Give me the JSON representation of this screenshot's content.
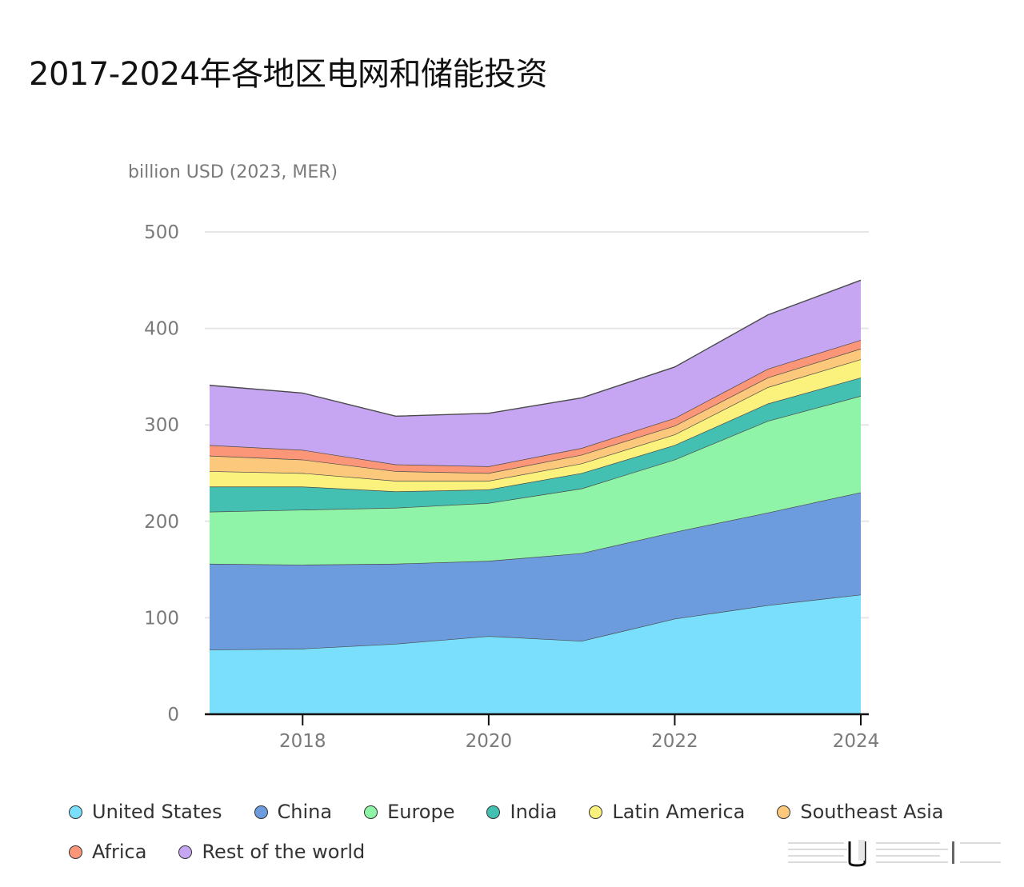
{
  "page": {
    "title": "2017-2024年各地区电网和储能投资"
  },
  "chart_data": {
    "type": "area",
    "stacked": true,
    "title": "2017-2024年各地区电网和储能投资",
    "ylabel": "billion USD (2023, MER)",
    "xlabel": "",
    "x": [
      2017,
      2018,
      2019,
      2020,
      2021,
      2022,
      2023,
      2024
    ],
    "xticks": [
      2018,
      2020,
      2022,
      2024
    ],
    "yticks": [
      0,
      100,
      200,
      300,
      400,
      500
    ],
    "ylim": [
      0,
      500
    ],
    "xlim": [
      2017,
      2024
    ],
    "grid": true,
    "legend_position": "bottom",
    "series": [
      {
        "name": "United States",
        "color": "#7ADFFC",
        "values": [
          67,
          68,
          73,
          81,
          76,
          99,
          113,
          124
        ]
      },
      {
        "name": "China",
        "color": "#6D9CDE",
        "values": [
          89,
          87,
          83,
          78,
          91,
          90,
          96,
          106
        ]
      },
      {
        "name": "Europe",
        "color": "#8FF4A7",
        "values": [
          54,
          57,
          58,
          60,
          67,
          75,
          95,
          100
        ]
      },
      {
        "name": "India",
        "color": "#44C0B2",
        "values": [
          26,
          24,
          17,
          14,
          16,
          15,
          18,
          19
        ]
      },
      {
        "name": "Latin America",
        "color": "#FBF27E",
        "values": [
          16,
          14,
          11,
          9,
          10,
          11,
          17,
          19
        ]
      },
      {
        "name": "Southeast Asia",
        "color": "#FCC97C",
        "values": [
          16,
          14,
          10,
          8,
          9,
          9,
          10,
          11
        ]
      },
      {
        "name": "Africa",
        "color": "#FB9679",
        "values": [
          11,
          10,
          7,
          7,
          7,
          8,
          9,
          9
        ]
      },
      {
        "name": "Rest of the world",
        "color": "#C6A6F2",
        "values": [
          62,
          59,
          50,
          55,
          52,
          53,
          56,
          62
        ]
      }
    ]
  }
}
